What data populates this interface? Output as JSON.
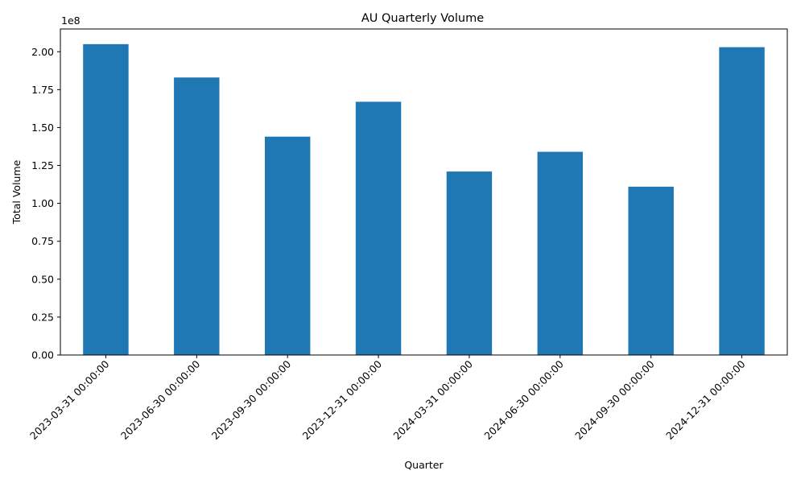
{
  "chart_data": {
    "type": "bar",
    "title": "AU Quarterly Volume",
    "xlabel": "Quarter",
    "ylabel": "Total Volume",
    "y_offset_label": "1e8",
    "categories": [
      "2023-03-31 00:00:00",
      "2023-06-30 00:00:00",
      "2023-09-30 00:00:00",
      "2023-12-31 00:00:00",
      "2024-03-31 00:00:00",
      "2024-06-30 00:00:00",
      "2024-09-30 00:00:00",
      "2024-12-31 00:00:00"
    ],
    "values": [
      205000000,
      183000000,
      144000000,
      167000000,
      121000000,
      134000000,
      111000000,
      203000000
    ],
    "ylim": [
      0,
      215000000
    ],
    "y_ticks": [
      0,
      25000000,
      50000000,
      75000000,
      100000000,
      125000000,
      150000000,
      175000000,
      200000000
    ],
    "y_tick_labels": [
      "0.00",
      "0.25",
      "0.50",
      "0.75",
      "1.00",
      "1.25",
      "1.50",
      "1.75",
      "2.00"
    ],
    "bar_color": "#1f77b4",
    "grid": false,
    "legend": false
  }
}
